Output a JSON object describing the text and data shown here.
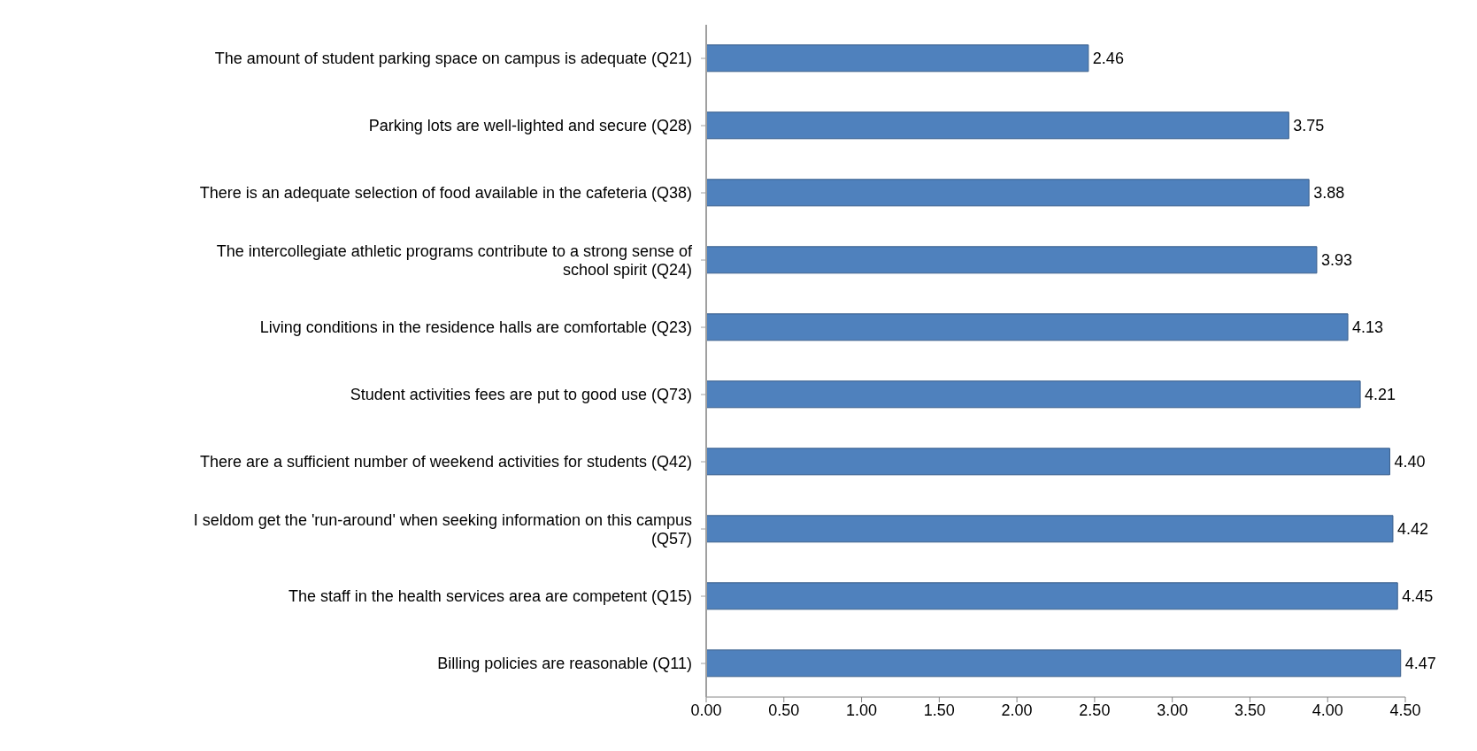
{
  "chart_data": {
    "type": "bar",
    "orientation": "horizontal",
    "categories": [
      "The amount of student parking space on campus is adequate (Q21)",
      "Parking lots are well-lighted and secure (Q28)",
      "There is an adequate selection of food available in the cafeteria (Q38)",
      "The intercollegiate athletic programs contribute to a strong sense of school spirit (Q24)",
      "Living conditions in the residence halls are comfortable (Q23)",
      "Student activities fees are put to good use (Q73)",
      "There are a sufficient number of weekend activities for students (Q42)",
      "I seldom get the 'run-around' when seeking information on this campus (Q57)",
      "The staff in the health services area are competent (Q15)",
      "Billing policies are reasonable (Q11)"
    ],
    "values": [
      2.46,
      3.75,
      3.88,
      3.93,
      4.13,
      4.21,
      4.4,
      4.42,
      4.45,
      4.47
    ],
    "value_labels": [
      "2.46",
      "3.75",
      "3.88",
      "3.93",
      "4.13",
      "4.21",
      "4.40",
      "4.42",
      "4.45",
      "4.47"
    ],
    "color": "#4f81bd",
    "xlim": [
      0,
      4.5
    ],
    "xticks": [
      {
        "value": 0,
        "label": "0.00"
      },
      {
        "value": 0.5,
        "label": "0.50"
      },
      {
        "value": 1,
        "label": "1.00"
      },
      {
        "value": 1.5,
        "label": "1.50"
      },
      {
        "value": 2,
        "label": "2.00"
      },
      {
        "value": 2.5,
        "label": "2.50"
      },
      {
        "value": 3,
        "label": "3.00"
      },
      {
        "value": 3.5,
        "label": "3.50"
      },
      {
        "value": 4,
        "label": "4.00"
      },
      {
        "value": 4.5,
        "label": "4.50"
      }
    ],
    "grid": false,
    "legend": false
  }
}
